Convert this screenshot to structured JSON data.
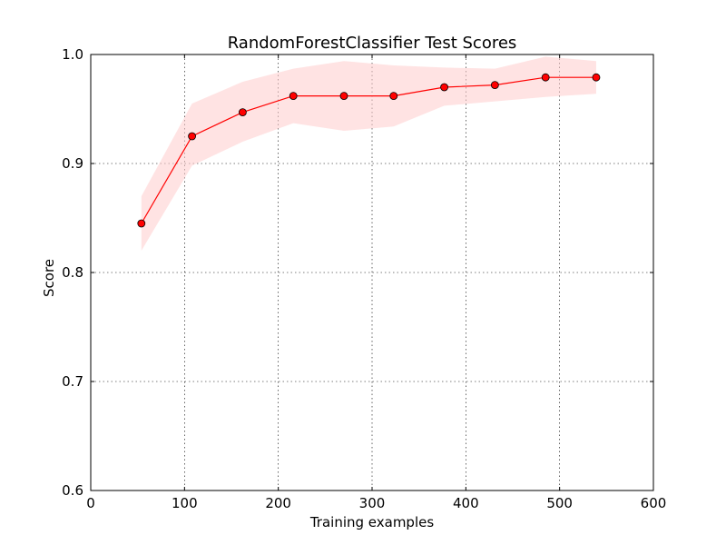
{
  "chart_data": {
    "type": "line",
    "title": "RandomForestClassifier Test Scores",
    "xlabel": "Training examples",
    "ylabel": "Score",
    "xlim": [
      0,
      600
    ],
    "ylim": [
      0.6,
      1.0
    ],
    "xticks": [
      0,
      100,
      200,
      300,
      400,
      500,
      600
    ],
    "yticks": [
      0.6,
      0.7,
      0.8,
      0.9,
      1.0
    ],
    "xtick_labels": [
      "0",
      "100",
      "200",
      "300",
      "400",
      "500",
      "600"
    ],
    "ytick_labels": [
      "0.6",
      "0.7",
      "0.8",
      "0.9",
      "1.0"
    ],
    "grid": true,
    "series": [
      {
        "x": [
          54,
          108,
          162,
          216,
          270,
          323,
          377,
          431,
          485,
          539
        ],
        "y": [
          0.845,
          0.925,
          0.947,
          0.962,
          0.962,
          0.962,
          0.97,
          0.972,
          0.979,
          0.979
        ],
        "band_lower": [
          0.82,
          0.898,
          0.92,
          0.937,
          0.93,
          0.934,
          0.953,
          0.957,
          0.961,
          0.964
        ],
        "band_upper": [
          0.87,
          0.955,
          0.975,
          0.987,
          0.994,
          0.99,
          0.988,
          0.987,
          0.998,
          0.994
        ],
        "color": "#ff0000",
        "band_color": "#ffcccc"
      }
    ]
  }
}
